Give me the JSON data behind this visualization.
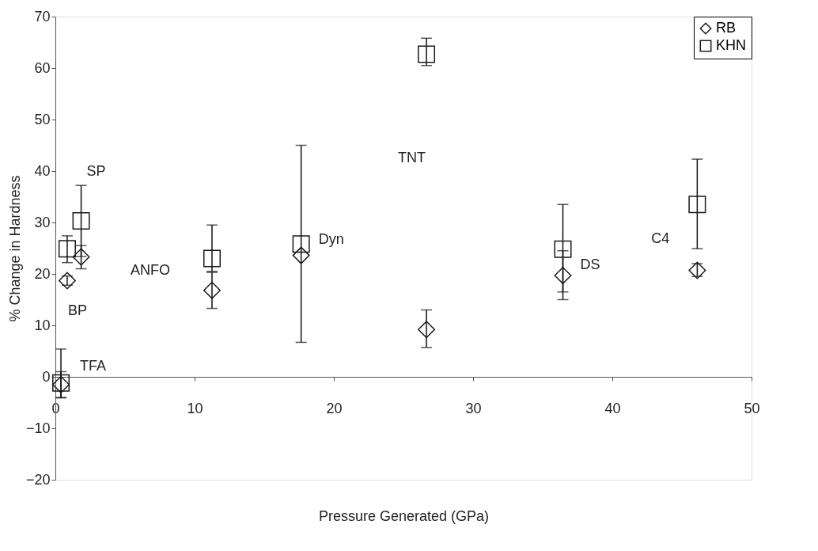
{
  "chart_data": {
    "type": "scatter",
    "xlabel": "Pressure Generated (GPa)",
    "ylabel": "% Change in Hardness",
    "xlim": [
      0,
      50
    ],
    "xticks": [
      0,
      10,
      20,
      30,
      40,
      50
    ],
    "ylim": [
      -20,
      70
    ],
    "yticks": [
      -20,
      -10,
      0,
      10,
      20,
      30,
      40,
      50,
      60,
      70
    ],
    "grid": false,
    "legend": "top right",
    "series": [
      {
        "name": "RB",
        "color": "#1a1a1a",
        "marker": "diamond",
        "x": [
          0.4,
          0.85,
          1.85,
          11.25,
          17.65,
          26.65,
          36.45,
          46.1
        ],
        "values": [
          -1.5,
          18.7,
          23.3,
          16.8,
          23.6,
          9.2,
          19.7,
          20.7
        ],
        "errors": [
          [
            -4,
            1
          ],
          [
            17.8,
            19.6
          ],
          [
            21,
            25.5
          ],
          [
            13.3,
            20.3
          ],
          [
            6.7,
            45
          ],
          [
            5.7,
            13
          ],
          [
            15,
            24.5
          ],
          [
            19.5,
            22
          ]
        ]
      },
      {
        "name": "KHN",
        "color": "#1a1a1a",
        "marker": "square",
        "x": [
          0.4,
          0.85,
          1.85,
          11.25,
          17.65,
          26.65,
          36.45,
          46.1
        ],
        "values": [
          -1.2,
          24.9,
          30.3,
          23.0,
          25.8,
          62.7,
          24.8,
          33.5
        ],
        "errors": [
          [
            -4.1,
            5.4
          ],
          [
            22.2,
            27.4
          ],
          [
            23.4,
            37.2
          ],
          [
            20.5,
            29.5
          ],
          null,
          [
            60.5,
            65.8
          ],
          [
            16.5,
            33.5
          ],
          [
            24.9,
            42.3
          ]
        ]
      }
    ],
    "annotations": [
      {
        "text": "TFA",
        "x": 0.4,
        "y": -1.2
      },
      {
        "text": "BP",
        "x": 0.85,
        "y": 18.7
      },
      {
        "text": "SP",
        "x": 1.85,
        "y": 30.3
      },
      "ANFO",
      {
        "text": "Dyn",
        "x": 17.65,
        "y": 25.8
      },
      "TNT",
      {
        "text": "DS",
        "x": 36.45,
        "y": 19.7
      },
      {
        "text": "C4",
        "x": 46.1,
        "y": 20.7
      }
    ]
  }
}
